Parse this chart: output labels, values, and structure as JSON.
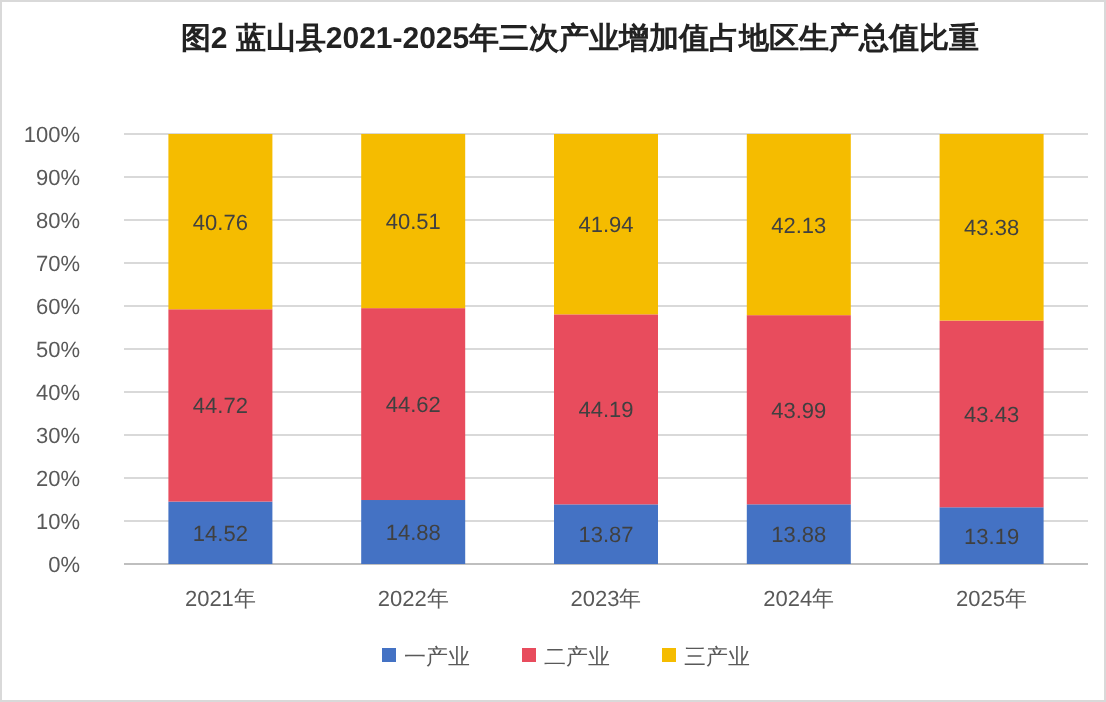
{
  "chart_data": {
    "type": "bar",
    "title": "图2 蓝山县2021-2025年三次产业增加值占地区生产总值比重",
    "categories": [
      "2021年",
      "2022年",
      "2023年",
      "2024年",
      "2025年"
    ],
    "series": [
      {
        "name": "一产业",
        "color": "#4472c4",
        "values": [
          14.52,
          14.88,
          13.87,
          13.88,
          13.19
        ]
      },
      {
        "name": "二产业",
        "color": "#e84c5d",
        "values": [
          44.72,
          44.62,
          44.19,
          43.99,
          43.43
        ]
      },
      {
        "name": "三产业",
        "color": "#f5bc00",
        "values": [
          40.76,
          40.51,
          41.94,
          42.13,
          43.38
        ]
      }
    ],
    "stacked": true,
    "ylim": [
      0,
      100
    ],
    "yticks": [
      {
        "value": 0,
        "label": "0%"
      },
      {
        "value": 10,
        "label": "10%"
      },
      {
        "value": 20,
        "label": "20%"
      },
      {
        "value": 30,
        "label": "30%"
      },
      {
        "value": 40,
        "label": "40%"
      },
      {
        "value": 50,
        "label": "50%"
      },
      {
        "value": 60,
        "label": "60%"
      },
      {
        "value": 70,
        "label": "70%"
      },
      {
        "value": 80,
        "label": "80%"
      },
      {
        "value": 90,
        "label": "90%"
      },
      {
        "value": 100,
        "label": "100%"
      }
    ],
    "grid": "y",
    "legend": "bottom",
    "data_labels": true
  }
}
